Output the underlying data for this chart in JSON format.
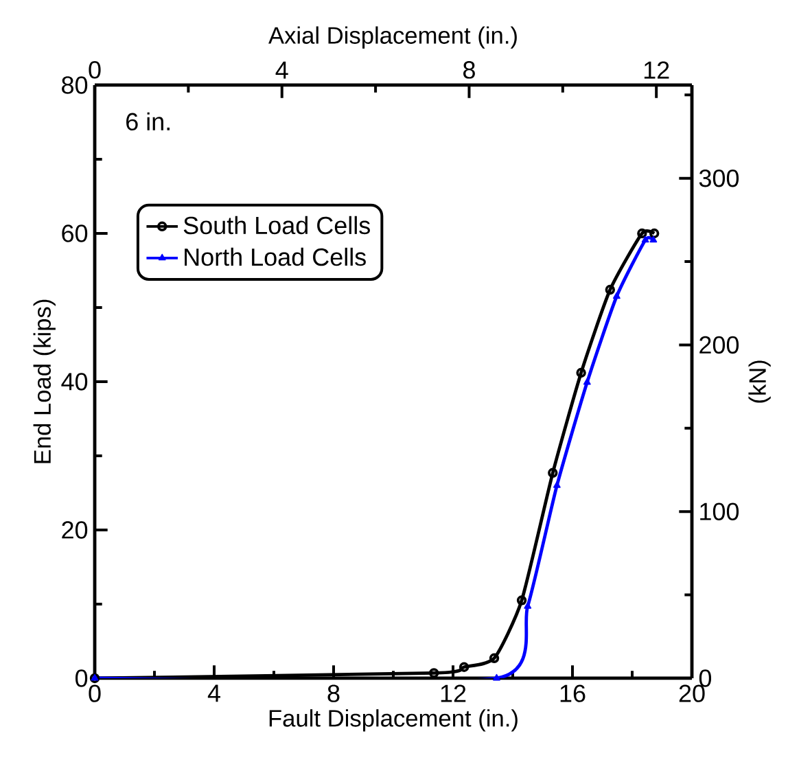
{
  "chart_data": {
    "type": "line",
    "xlabel": "Fault Displacement (in.)",
    "ylabel": "End Load (kips)",
    "x2label": "Axial Displacement (in.)",
    "y2label": "(kN)",
    "annotations": [
      "6 in."
    ],
    "xlim": [
      0,
      20
    ],
    "xticks": [
      0,
      {
        "value": 2,
        "label": null
      },
      4,
      {
        "value": 6,
        "label": null
      },
      8,
      {
        "value": 10,
        "label": null
      },
      12,
      {
        "value": 14,
        "label": null
      },
      16,
      {
        "value": 18,
        "label": null
      },
      20
    ],
    "ylim": [
      0,
      80
    ],
    "yticks": [
      0,
      {
        "value": 10,
        "label": null
      },
      20,
      {
        "value": 30,
        "label": null
      },
      40,
      {
        "value": 50,
        "label": null
      },
      60,
      {
        "value": 70,
        "label": null
      },
      80
    ],
    "x2lim": [
      0,
      12.76
    ],
    "x2ticks": [
      0,
      {
        "value": 2,
        "label": null
      },
      4,
      {
        "value": 6,
        "label": null
      },
      8,
      {
        "value": 10,
        "label": null
      },
      12
    ],
    "y2lim": [
      0,
      355.9
    ],
    "y2ticks": [
      0,
      {
        "value": 50,
        "label": null
      },
      100,
      {
        "value": 150,
        "label": null
      },
      200,
      {
        "value": 250,
        "label": null
      },
      300,
      {
        "value": 350,
        "label": null
      }
    ],
    "grid": false,
    "legend": "top left",
    "line_style": "solid",
    "series": [
      {
        "name": "South Load Cells",
        "color": "#000000",
        "marker": "circle",
        "x": [
          0,
          11.36,
          12.37,
          13.38,
          14.3,
          15.34,
          16.29,
          17.26,
          18.33,
          18.74
        ],
        "values": [
          0,
          0.7,
          1.5,
          2.7,
          10.5,
          27.7,
          41.2,
          52.4,
          60.0,
          60.0
        ]
      },
      {
        "name": "North Load Cells",
        "color": "#0000ff",
        "marker": "triangle",
        "x": [
          0,
          13.46,
          14.5,
          15.48,
          16.49,
          17.48,
          18.44,
          18.71
        ],
        "values": [
          0,
          0,
          9.7,
          26.0,
          39.9,
          51.5,
          59.1,
          59.1
        ]
      }
    ]
  }
}
